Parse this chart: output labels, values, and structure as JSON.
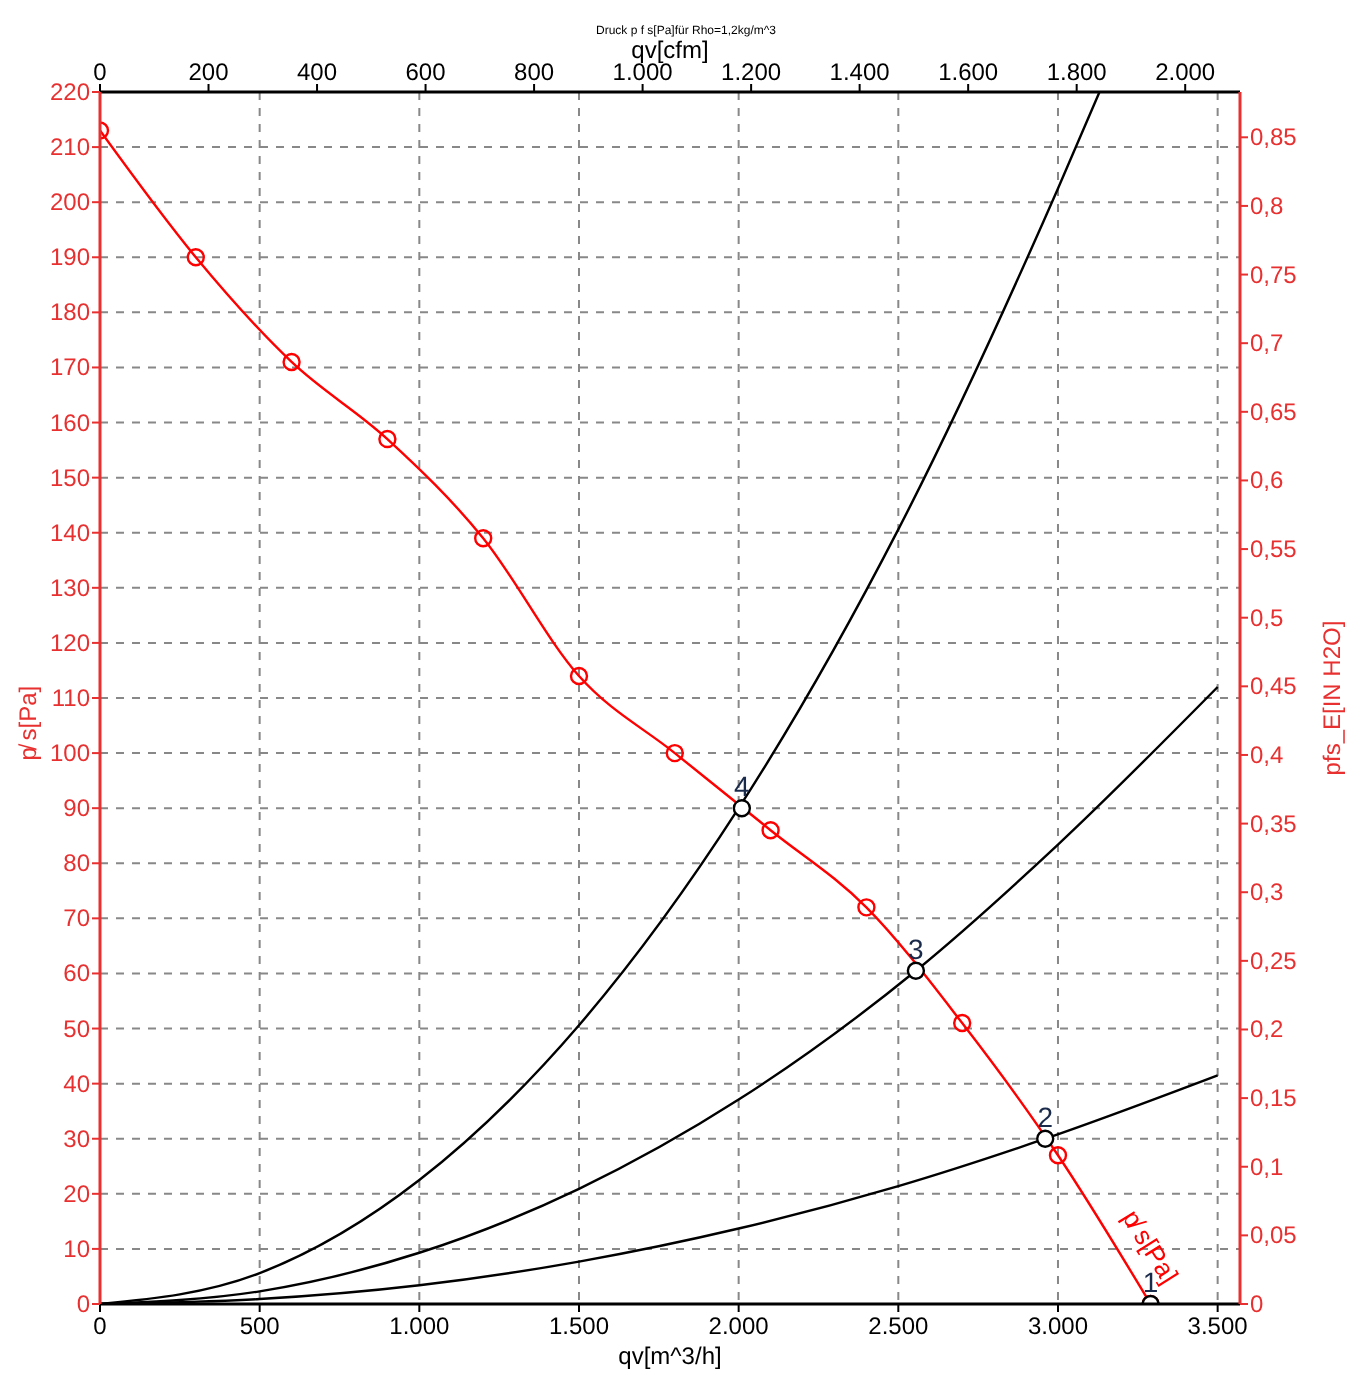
{
  "chart_data": {
    "type": "line",
    "title": "Druck p f s[Pa]für Rho=1,2kg/m^3",
    "xlabel": "qv[m^3/h]",
    "x2label": "qv[cfm]",
    "ylabel": "p̸ s[Pa]",
    "y2label": "pfs_E[IN H2O]",
    "xlim": [
      0,
      3570
    ],
    "xticks": [
      0,
      500,
      {
        "value": 1000,
        "label": "1.000"
      },
      {
        "value": 1500,
        "label": "1.500"
      },
      {
        "value": 2000,
        "label": "2.000"
      },
      {
        "value": 2500,
        "label": "2.500"
      },
      {
        "value": 3000,
        "label": "3.000"
      },
      {
        "value": 3500,
        "label": "3.500"
      }
    ],
    "x2lim": [
      0,
      2101
    ],
    "x2ticks": [
      0,
      200,
      400,
      600,
      800,
      {
        "value": 1000,
        "label": "1.000"
      },
      {
        "value": 1200,
        "label": "1.200"
      },
      {
        "value": 1400,
        "label": "1.400"
      },
      {
        "value": 1600,
        "label": "1.600"
      },
      {
        "value": 1800,
        "label": "1.800"
      },
      {
        "value": 2000,
        "label": "2.000"
      }
    ],
    "ylim": [
      0,
      220
    ],
    "yticks": [
      0,
      10,
      20,
      30,
      40,
      50,
      60,
      70,
      80,
      90,
      100,
      110,
      120,
      130,
      140,
      150,
      160,
      170,
      180,
      190,
      200,
      210,
      220
    ],
    "y2lim": [
      0,
      0.883
    ],
    "y2ticks": [
      0,
      {
        "value": 0.05,
        "label": "0,05"
      },
      {
        "value": 0.1,
        "label": "0,1"
      },
      {
        "value": 0.15,
        "label": "0,15"
      },
      {
        "value": 0.2,
        "label": "0,2"
      },
      {
        "value": 0.25,
        "label": "0,25"
      },
      {
        "value": 0.3,
        "label": "0,3"
      },
      {
        "value": 0.35,
        "label": "0,35"
      },
      {
        "value": 0.4,
        "label": "0,4"
      },
      {
        "value": 0.45,
        "label": "0,45"
      },
      {
        "value": 0.5,
        "label": "0,5"
      },
      {
        "value": 0.55,
        "label": "0,55"
      },
      {
        "value": 0.6,
        "label": "0,6"
      },
      {
        "value": 0.65,
        "label": "0,65"
      },
      {
        "value": 0.7,
        "label": "0,7"
      },
      {
        "value": 0.75,
        "label": "0,75"
      },
      {
        "value": 0.8,
        "label": "0,8"
      },
      {
        "value": 0.85,
        "label": "0,85"
      }
    ],
    "grid": true,
    "annotations": [
      {
        "text": "1",
        "x": 3290,
        "y": 0
      },
      {
        "text": "2",
        "x": 2960,
        "y": 30
      },
      {
        "text": "3",
        "x": 2555,
        "y": 60.5
      },
      {
        "text": "4",
        "x": 2010,
        "y": 90
      }
    ],
    "series": [
      {
        "name": "p̸ s[Pa]",
        "color": "#ff0000",
        "marker": "circle",
        "x": [
          0,
          300,
          600,
          900,
          1200,
          1500,
          1800,
          2100,
          2400,
          2700,
          3000,
          3290
        ],
        "values": [
          213,
          190,
          171,
          157,
          139,
          114,
          100,
          86,
          72,
          51,
          27,
          0
        ]
      },
      {
        "color": "#000000",
        "marker": "none",
        "x": [
          0,
          500,
          1000,
          1500,
          2000,
          2500,
          3000,
          3130
        ],
        "values": [
          0,
          5.6,
          22.5,
          50.6,
          90,
          140.6,
          202.5,
          220
        ]
      },
      {
        "color": "#000000",
        "marker": "none",
        "x": [
          0,
          500,
          1000,
          1500,
          2000,
          2555,
          3000,
          3500
        ],
        "values": [
          0,
          2.3,
          9.3,
          20.9,
          37.1,
          60.5,
          83.4,
          112
        ]
      },
      {
        "color": "#000000",
        "marker": "none",
        "x": [
          0,
          500,
          1000,
          1500,
          2000,
          2500,
          2960,
          3500
        ],
        "values": [
          0,
          0.9,
          3.4,
          7.7,
          13.7,
          21.4,
          30,
          41.5
        ]
      },
      {
        "type": "scatter",
        "color": "#000000",
        "marker": "circle",
        "x": [
          3290,
          2960,
          2555,
          2010
        ],
        "values": [
          0,
          30,
          60.5,
          90
        ]
      }
    ]
  }
}
